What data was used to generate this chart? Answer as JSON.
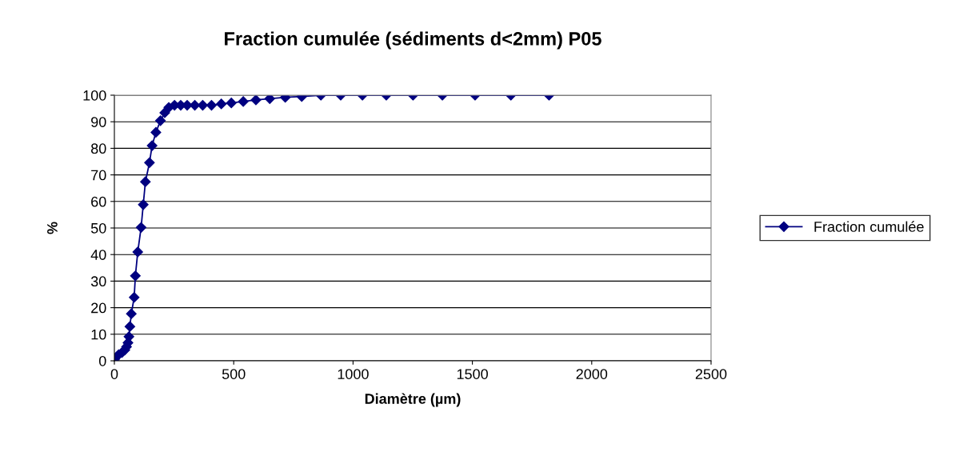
{
  "chart_data": {
    "type": "line",
    "title": "Fraction cumulée (sédiments d<2mm) P05",
    "xlabel": "Diamètre (µm)",
    "ylabel": "%",
    "xlim": [
      0,
      2500
    ],
    "xticks": [
      0,
      500,
      1000,
      1500,
      2000,
      2500
    ],
    "ylim": [
      0,
      100
    ],
    "yticks": [
      0,
      10,
      20,
      30,
      40,
      50,
      60,
      70,
      80,
      90,
      100
    ],
    "grid": "y",
    "legend": "right",
    "marker": "diamond",
    "line_style": "solid",
    "series": [
      {
        "name": "Fraction cumulée",
        "color": "#000080",
        "x": [
          0,
          18,
          32,
          44,
          51,
          57,
          61,
          65,
          71,
          83,
          88,
          98,
          112,
          121,
          130,
          147,
          158,
          174,
          193,
          211,
          228,
          252,
          278,
          305,
          337,
          370,
          407,
          448,
          490,
          540,
          593,
          651,
          716,
          785,
          865,
          948,
          1039,
          1139,
          1251,
          1374,
          1511,
          1661,
          1821
        ],
        "values": [
          0.5,
          2.3,
          3.1,
          4.1,
          5.3,
          6.8,
          9.1,
          12.9,
          17.7,
          23.9,
          32,
          41,
          50.2,
          58.8,
          67.4,
          74.6,
          81,
          86,
          90.4,
          93.4,
          95.4,
          96.2,
          96.2,
          96.2,
          96.2,
          96.2,
          96.2,
          96.7,
          97.1,
          97.6,
          98.2,
          98.7,
          99.2,
          99.5,
          100,
          100,
          100,
          100,
          100,
          100,
          100,
          100,
          100
        ]
      }
    ]
  }
}
